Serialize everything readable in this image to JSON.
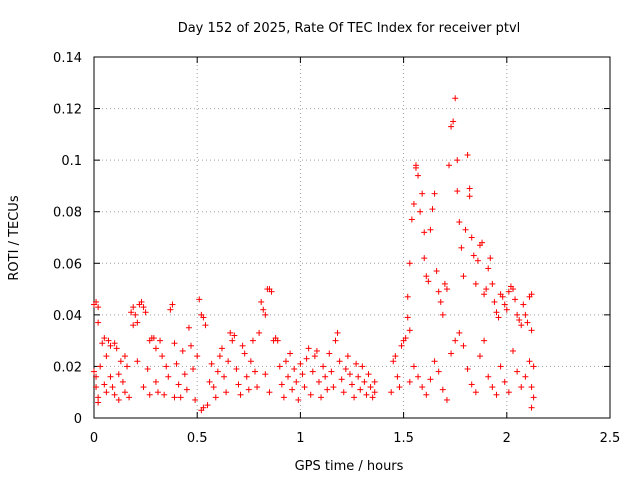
{
  "chart_data": {
    "type": "scatter",
    "title": "Day 152 of 2025, Rate Of TEC Index for receiver ptvl",
    "xlabel": "GPS time / hours",
    "ylabel": "ROTI / TECUs",
    "xlim": [
      0,
      2.5
    ],
    "ylim": [
      0,
      0.14
    ],
    "xticks": [
      0,
      0.5,
      1,
      1.5,
      2,
      2.5
    ],
    "xtick_labels": [
      "0",
      "0.5",
      "1",
      "1.5",
      "2",
      "2.5"
    ],
    "yticks": [
      0,
      0.02,
      0.04,
      0.06,
      0.08,
      0.1,
      0.12,
      0.14
    ],
    "ytick_labels": [
      "0",
      "0.02",
      "0.04",
      "0.06",
      "0.08",
      "0.1",
      "0.12",
      "0.14"
    ],
    "grid": true,
    "marker": "+",
    "color": "#ff0000",
    "series": [
      {
        "name": "ROTI",
        "points": [
          [
            0.0,
            0.044
          ],
          [
            0.01,
            0.045
          ],
          [
            0.02,
            0.043
          ],
          [
            0.02,
            0.037
          ],
          [
            0.0,
            0.018
          ],
          [
            0.01,
            0.016
          ],
          [
            0.01,
            0.012
          ],
          [
            0.02,
            0.008
          ],
          [
            0.02,
            0.006
          ],
          [
            0.03,
            0.02
          ],
          [
            0.04,
            0.029
          ],
          [
            0.05,
            0.031
          ],
          [
            0.05,
            0.013
          ],
          [
            0.06,
            0.01
          ],
          [
            0.06,
            0.024
          ],
          [
            0.07,
            0.03
          ],
          [
            0.08,
            0.028
          ],
          [
            0.08,
            0.016
          ],
          [
            0.09,
            0.012
          ],
          [
            0.1,
            0.029
          ],
          [
            0.1,
            0.009
          ],
          [
            0.11,
            0.027
          ],
          [
            0.12,
            0.017
          ],
          [
            0.12,
            0.007
          ],
          [
            0.13,
            0.022
          ],
          [
            0.14,
            0.014
          ],
          [
            0.15,
            0.01
          ],
          [
            0.15,
            0.024
          ],
          [
            0.16,
            0.02
          ],
          [
            0.17,
            0.008
          ],
          [
            0.18,
            0.041
          ],
          [
            0.19,
            0.043
          ],
          [
            0.19,
            0.036
          ],
          [
            0.2,
            0.04
          ],
          [
            0.21,
            0.037
          ],
          [
            0.21,
            0.022
          ],
          [
            0.22,
            0.044
          ],
          [
            0.23,
            0.045
          ],
          [
            0.24,
            0.043
          ],
          [
            0.25,
            0.041
          ],
          [
            0.24,
            0.012
          ],
          [
            0.26,
            0.019
          ],
          [
            0.27,
            0.03
          ],
          [
            0.27,
            0.009
          ],
          [
            0.28,
            0.031
          ],
          [
            0.29,
            0.031
          ],
          [
            0.3,
            0.027
          ],
          [
            0.3,
            0.014
          ],
          [
            0.31,
            0.01
          ],
          [
            0.32,
            0.03
          ],
          [
            0.33,
            0.024
          ],
          [
            0.34,
            0.009
          ],
          [
            0.35,
            0.02
          ],
          [
            0.36,
            0.016
          ],
          [
            0.37,
            0.042
          ],
          [
            0.38,
            0.044
          ],
          [
            0.39,
            0.029
          ],
          [
            0.39,
            0.008
          ],
          [
            0.4,
            0.021
          ],
          [
            0.41,
            0.013
          ],
          [
            0.42,
            0.008
          ],
          [
            0.43,
            0.026
          ],
          [
            0.44,
            0.017
          ],
          [
            0.45,
            0.011
          ],
          [
            0.46,
            0.035
          ],
          [
            0.47,
            0.028
          ],
          [
            0.48,
            0.019
          ],
          [
            0.49,
            0.007
          ],
          [
            0.5,
            0.024
          ],
          [
            0.51,
            0.046
          ],
          [
            0.52,
            0.04
          ],
          [
            0.53,
            0.039
          ],
          [
            0.54,
            0.036
          ],
          [
            0.52,
            0.003
          ],
          [
            0.53,
            0.004
          ],
          [
            0.55,
            0.005
          ],
          [
            0.56,
            0.014
          ],
          [
            0.57,
            0.021
          ],
          [
            0.58,
            0.012
          ],
          [
            0.59,
            0.008
          ],
          [
            0.6,
            0.018
          ],
          [
            0.61,
            0.024
          ],
          [
            0.62,
            0.027
          ],
          [
            0.63,
            0.016
          ],
          [
            0.64,
            0.01
          ],
          [
            0.65,
            0.022
          ],
          [
            0.66,
            0.033
          ],
          [
            0.67,
            0.03
          ],
          [
            0.68,
            0.032
          ],
          [
            0.69,
            0.019
          ],
          [
            0.7,
            0.013
          ],
          [
            0.71,
            0.009
          ],
          [
            0.72,
            0.028
          ],
          [
            0.73,
            0.025
          ],
          [
            0.74,
            0.016
          ],
          [
            0.75,
            0.011
          ],
          [
            0.76,
            0.022
          ],
          [
            0.77,
            0.03
          ],
          [
            0.78,
            0.018
          ],
          [
            0.79,
            0.012
          ],
          [
            0.8,
            0.033
          ],
          [
            0.81,
            0.045
          ],
          [
            0.82,
            0.042
          ],
          [
            0.83,
            0.04
          ],
          [
            0.84,
            0.05
          ],
          [
            0.85,
            0.05
          ],
          [
            0.86,
            0.049
          ],
          [
            0.83,
            0.017
          ],
          [
            0.85,
            0.01
          ],
          [
            0.87,
            0.03
          ],
          [
            0.88,
            0.031
          ],
          [
            0.89,
            0.03
          ],
          [
            0.9,
            0.02
          ],
          [
            0.91,
            0.013
          ],
          [
            0.92,
            0.008
          ],
          [
            0.93,
            0.022
          ],
          [
            0.94,
            0.016
          ],
          [
            0.95,
            0.025
          ],
          [
            0.96,
            0.011
          ],
          [
            0.97,
            0.019
          ],
          [
            0.98,
            0.014
          ],
          [
            0.99,
            0.007
          ],
          [
            1.0,
            0.021
          ],
          [
            1.01,
            0.017
          ],
          [
            1.02,
            0.012
          ],
          [
            1.03,
            0.023
          ],
          [
            1.04,
            0.027
          ],
          [
            1.05,
            0.009
          ],
          [
            1.06,
            0.018
          ],
          [
            1.07,
            0.024
          ],
          [
            1.08,
            0.026
          ],
          [
            1.09,
            0.014
          ],
          [
            1.1,
            0.008
          ],
          [
            1.11,
            0.02
          ],
          [
            1.12,
            0.016
          ],
          [
            1.13,
            0.011
          ],
          [
            1.14,
            0.025
          ],
          [
            1.15,
            0.018
          ],
          [
            1.16,
            0.012
          ],
          [
            1.17,
            0.03
          ],
          [
            1.18,
            0.033
          ],
          [
            1.19,
            0.022
          ],
          [
            1.2,
            0.015
          ],
          [
            1.21,
            0.01
          ],
          [
            1.22,
            0.019
          ],
          [
            1.23,
            0.024
          ],
          [
            1.24,
            0.017
          ],
          [
            1.25,
            0.013
          ],
          [
            1.26,
            0.008
          ],
          [
            1.27,
            0.021
          ],
          [
            1.28,
            0.016
          ],
          [
            1.29,
            0.011
          ],
          [
            1.3,
            0.02
          ],
          [
            1.31,
            0.014
          ],
          [
            1.32,
            0.009
          ],
          [
            1.33,
            0.017
          ],
          [
            1.34,
            0.012
          ],
          [
            1.35,
            0.008
          ],
          [
            1.36,
            0.014
          ],
          [
            1.36,
            0.01
          ],
          [
            1.44,
            0.01
          ],
          [
            1.45,
            0.022
          ],
          [
            1.46,
            0.024
          ],
          [
            1.47,
            0.016
          ],
          [
            1.48,
            0.012
          ],
          [
            1.49,
            0.028
          ],
          [
            1.5,
            0.03
          ],
          [
            1.51,
            0.031
          ],
          [
            1.52,
            0.039
          ],
          [
            1.52,
            0.047
          ],
          [
            1.53,
            0.034
          ],
          [
            1.53,
            0.06
          ],
          [
            1.54,
            0.077
          ],
          [
            1.55,
            0.083
          ],
          [
            1.56,
            0.097
          ],
          [
            1.56,
            0.098
          ],
          [
            1.57,
            0.094
          ],
          [
            1.58,
            0.08
          ],
          [
            1.59,
            0.087
          ],
          [
            1.6,
            0.072
          ],
          [
            1.6,
            0.062
          ],
          [
            1.61,
            0.055
          ],
          [
            1.62,
            0.053
          ],
          [
            1.63,
            0.073
          ],
          [
            1.64,
            0.081
          ],
          [
            1.65,
            0.087
          ],
          [
            1.66,
            0.057
          ],
          [
            1.67,
            0.049
          ],
          [
            1.68,
            0.045
          ],
          [
            1.69,
            0.04
          ],
          [
            1.7,
            0.052
          ],
          [
            1.71,
            0.05
          ],
          [
            1.72,
            0.098
          ],
          [
            1.73,
            0.113
          ],
          [
            1.74,
            0.115
          ],
          [
            1.75,
            0.124
          ],
          [
            1.76,
            0.1
          ],
          [
            1.76,
            0.088
          ],
          [
            1.77,
            0.076
          ],
          [
            1.78,
            0.066
          ],
          [
            1.79,
            0.055
          ],
          [
            1.8,
            0.073
          ],
          [
            1.81,
            0.102
          ],
          [
            1.82,
            0.089
          ],
          [
            1.82,
            0.086
          ],
          [
            1.83,
            0.07
          ],
          [
            1.84,
            0.063
          ],
          [
            1.85,
            0.052
          ],
          [
            1.86,
            0.061
          ],
          [
            1.87,
            0.067
          ],
          [
            1.88,
            0.068
          ],
          [
            1.89,
            0.048
          ],
          [
            1.9,
            0.05
          ],
          [
            1.91,
            0.058
          ],
          [
            1.92,
            0.062
          ],
          [
            1.93,
            0.052
          ],
          [
            1.94,
            0.045
          ],
          [
            1.95,
            0.041
          ],
          [
            1.96,
            0.039
          ],
          [
            1.97,
            0.048
          ],
          [
            1.98,
            0.047
          ],
          [
            1.99,
            0.044
          ],
          [
            2.0,
            0.042
          ],
          [
            2.01,
            0.049
          ],
          [
            2.02,
            0.051
          ],
          [
            2.03,
            0.05
          ],
          [
            2.04,
            0.046
          ],
          [
            2.05,
            0.04
          ],
          [
            2.06,
            0.038
          ],
          [
            2.07,
            0.036
          ],
          [
            2.08,
            0.044
          ],
          [
            2.09,
            0.04
          ],
          [
            2.1,
            0.037
          ],
          [
            2.11,
            0.047
          ],
          [
            2.12,
            0.048
          ],
          [
            2.12,
            0.034
          ],
          [
            2.13,
            0.02
          ],
          [
            2.12,
            0.012
          ],
          [
            2.13,
            0.008
          ],
          [
            2.12,
            0.004
          ],
          [
            1.55,
            0.02
          ],
          [
            1.57,
            0.016
          ],
          [
            1.59,
            0.012
          ],
          [
            1.61,
            0.009
          ],
          [
            1.63,
            0.015
          ],
          [
            1.65,
            0.022
          ],
          [
            1.67,
            0.018
          ],
          [
            1.69,
            0.011
          ],
          [
            1.71,
            0.007
          ],
          [
            1.73,
            0.025
          ],
          [
            1.75,
            0.03
          ],
          [
            1.77,
            0.033
          ],
          [
            1.79,
            0.028
          ],
          [
            1.81,
            0.019
          ],
          [
            1.83,
            0.013
          ],
          [
            1.85,
            0.01
          ],
          [
            1.87,
            0.024
          ],
          [
            1.89,
            0.03
          ],
          [
            1.91,
            0.016
          ],
          [
            1.93,
            0.012
          ],
          [
            1.95,
            0.009
          ],
          [
            1.97,
            0.02
          ],
          [
            1.99,
            0.014
          ],
          [
            2.01,
            0.01
          ],
          [
            2.03,
            0.026
          ],
          [
            2.05,
            0.018
          ],
          [
            2.07,
            0.012
          ],
          [
            2.09,
            0.016
          ],
          [
            2.11,
            0.022
          ],
          [
            1.53,
            0.014
          ]
        ]
      }
    ]
  }
}
